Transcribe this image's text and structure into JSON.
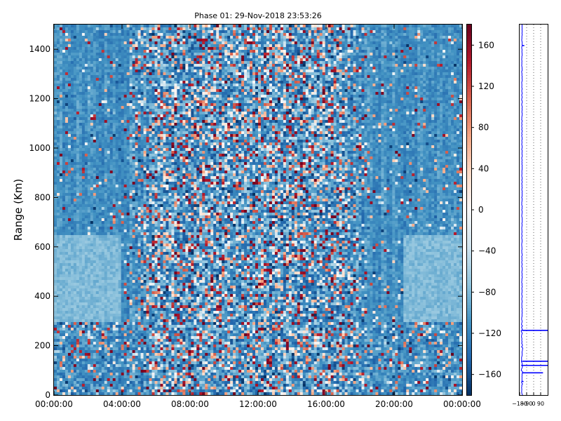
{
  "chart_data": [
    {
      "type": "heatmap",
      "title": "Phase 01: 29-Nov-2018 23:53:26",
      "xlabel": "",
      "ylabel": "Range (Km)",
      "x_ticks": [
        "00:00:00",
        "04:00:00",
        "08:00:00",
        "12:00:00",
        "16:00:00",
        "20:00:00",
        "00:00:00"
      ],
      "x_range_hours": [
        0,
        24
      ],
      "ylim": [
        0,
        1500
      ],
      "y_ticks": [
        0,
        200,
        400,
        600,
        800,
        1000,
        1200,
        1400
      ],
      "colorbar": {
        "ticks": [
          160,
          120,
          80,
          40,
          0,
          -40,
          -80,
          -120,
          -160
        ],
        "range": [
          -180,
          180
        ],
        "colormap": "RdBu_r"
      },
      "noisy_band_hours": [
        6,
        17
      ],
      "quiet_value_deg": -110,
      "colors": {
        "low": "#053061",
        "mid": "#f7f7f7",
        "high": "#67001f"
      }
    },
    {
      "type": "line",
      "x_ticks": [
        "−180",
        "−90",
        "0",
        "90"
      ],
      "xlim": [
        -180,
        180
      ],
      "ylim": [
        0,
        1500
      ],
      "grid": "dotted vertical",
      "series_color": "#0000ff",
      "profile_baseline": -150,
      "spikes": [
        {
          "range_km": 1415,
          "value": -120
        },
        {
          "range_km": 262,
          "value": 180
        },
        {
          "range_km": 137,
          "value": 180
        },
        {
          "range_km": 120,
          "value": 180
        },
        {
          "range_km": 90,
          "value": 120
        },
        {
          "range_km": 55,
          "value": -130
        }
      ]
    }
  ]
}
